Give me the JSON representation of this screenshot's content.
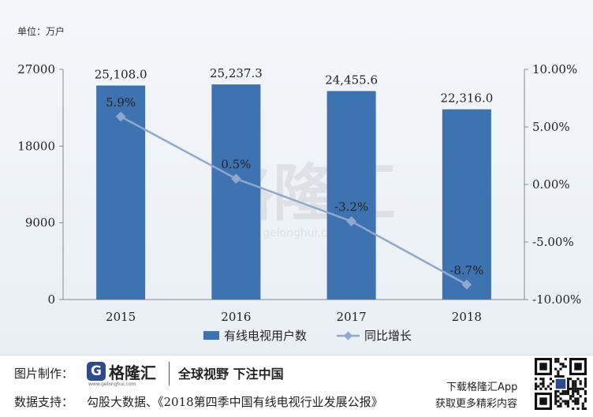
{
  "unit_label": "单位：万户",
  "watermark": {
    "text": "格隆汇",
    "sub": "gelonghui.com"
  },
  "chart_data": {
    "type": "bar",
    "categories": [
      "2015",
      "2016",
      "2017",
      "2018"
    ],
    "series": [
      {
        "name": "有线电视用户数",
        "kind": "bar",
        "axis": "left",
        "values": [
          25108.0,
          25237.3,
          24455.6,
          22316.0
        ],
        "labels": [
          "25,108.0",
          "25,237.3",
          "24,455.6",
          "22,316.0"
        ],
        "color": "#3d73b0"
      },
      {
        "name": "同比增长",
        "kind": "line",
        "axis": "right",
        "values": [
          5.9,
          0.5,
          -3.2,
          -8.7
        ],
        "labels": [
          "5.9%",
          "0.5%",
          "-3.2%",
          "-8.7%"
        ],
        "color": "#8fa8cc"
      }
    ],
    "y_left": {
      "min": 0,
      "max": 27000,
      "ticks": [
        0,
        9000,
        18000,
        27000
      ],
      "tick_labels": [
        "0",
        "9000",
        "18000",
        "27000"
      ]
    },
    "y_right": {
      "min": -10,
      "max": 10,
      "ticks": [
        10,
        5,
        0,
        -5,
        -10
      ],
      "tick_labels": [
        "10.00%",
        "5.00%",
        "0.00%",
        "-5.00%",
        "-10.00%"
      ]
    },
    "legend_position": "bottom",
    "grid": false
  },
  "footer": {
    "maker_label": "图片制作：",
    "brand_mark": "G",
    "brand_name": "格隆汇",
    "brand_url": "www.gelonghui.com",
    "slogan": "全球视野 下注中国",
    "source_label": "数据支持：",
    "source_text": "勾股大数据、《2018第四季中国有线电视行业发展公报》",
    "app_text": "下载格隆汇App",
    "app_sub": "获取更多精彩内容",
    "qr_icon": "qr-code-icon"
  }
}
